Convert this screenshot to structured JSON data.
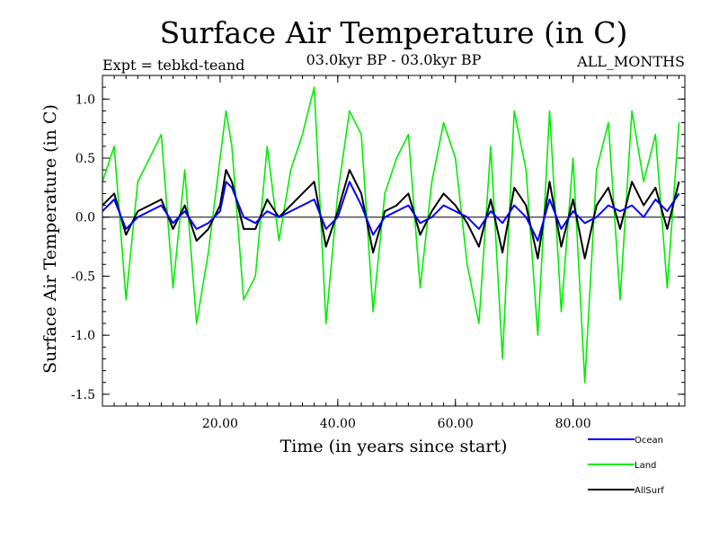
{
  "chart_data": {
    "type": "line",
    "title": "Surface Air Temperature (in C)",
    "subtitle_left": "Expt = tebkd-teand",
    "subtitle_center": "03.0kyr BP - 03.0kyr BP",
    "subtitle_right": "ALL_MONTHS",
    "xlabel": "Time (in years since start)",
    "ylabel": "Surface Air Temperature (in C)",
    "xlim": [
      0,
      99
    ],
    "ylim": [
      -1.6,
      1.2
    ],
    "xticks": [
      20,
      40,
      60,
      80
    ],
    "xtick_labels": [
      "20.00",
      "40.00",
      "60.00",
      "80.00"
    ],
    "yticks": [
      1.0,
      0.5,
      0.0,
      -0.5,
      -1.0,
      -1.5
    ],
    "ytick_labels": [
      "1.0",
      "0.5",
      "0.0",
      "-0.5",
      "-1.0",
      "-1.5"
    ],
    "zero_line": true,
    "legend_position": "bottom-right, below plot",
    "series": [
      {
        "name": "Ocean",
        "color": "#0000ff",
        "x": [
          0,
          2,
          4,
          6,
          8,
          10,
          12,
          14,
          16,
          18,
          20,
          21,
          22,
          24,
          26,
          28,
          30,
          32,
          34,
          36,
          38,
          40,
          42,
          44,
          46,
          48,
          50,
          52,
          54,
          56,
          58,
          60,
          62,
          64,
          66,
          68,
          70,
          72,
          74,
          76,
          78,
          80,
          82,
          84,
          86,
          88,
          90,
          92,
          94,
          96,
          98
        ],
        "values": [
          0.05,
          0.15,
          -0.1,
          0.0,
          0.05,
          0.1,
          -0.05,
          0.05,
          -0.1,
          -0.05,
          0.05,
          0.3,
          0.25,
          0.0,
          -0.05,
          0.05,
          0.0,
          0.05,
          0.1,
          0.15,
          -0.1,
          0.0,
          0.3,
          0.1,
          -0.15,
          0.0,
          0.05,
          0.1,
          -0.05,
          0.0,
          0.1,
          0.05,
          0.0,
          -0.1,
          0.05,
          -0.05,
          0.1,
          0.0,
          -0.2,
          0.15,
          -0.1,
          0.05,
          -0.05,
          0.0,
          0.1,
          0.05,
          0.1,
          0.0,
          0.15,
          0.05,
          0.2
        ]
      },
      {
        "name": "Land",
        "color": "#00ee00",
        "x": [
          0,
          2,
          4,
          6,
          8,
          10,
          12,
          14,
          16,
          18,
          20,
          21,
          22,
          24,
          26,
          28,
          30,
          32,
          34,
          36,
          38,
          40,
          42,
          44,
          46,
          48,
          50,
          52,
          54,
          56,
          58,
          60,
          62,
          64,
          66,
          68,
          70,
          72,
          74,
          76,
          78,
          80,
          82,
          84,
          86,
          88,
          90,
          92,
          94,
          96,
          98
        ],
        "values": [
          0.3,
          0.6,
          -0.7,
          0.3,
          0.5,
          0.7,
          -0.6,
          0.4,
          -0.9,
          -0.3,
          0.5,
          0.9,
          0.6,
          -0.7,
          -0.5,
          0.6,
          -0.2,
          0.4,
          0.7,
          1.1,
          -0.9,
          0.2,
          0.9,
          0.7,
          -0.8,
          0.2,
          0.5,
          0.7,
          -0.6,
          0.3,
          0.8,
          0.5,
          -0.4,
          -0.9,
          0.6,
          -1.2,
          0.9,
          0.4,
          -1.0,
          0.9,
          -0.8,
          0.5,
          -1.4,
          0.4,
          0.8,
          -0.7,
          0.9,
          0.3,
          0.7,
          -0.6,
          0.8
        ]
      },
      {
        "name": "AllSurf",
        "color": "#000000",
        "x": [
          0,
          2,
          4,
          6,
          8,
          10,
          12,
          14,
          16,
          18,
          20,
          21,
          22,
          24,
          26,
          28,
          30,
          32,
          34,
          36,
          38,
          40,
          42,
          44,
          46,
          48,
          50,
          52,
          54,
          56,
          58,
          60,
          62,
          64,
          66,
          68,
          70,
          72,
          74,
          76,
          78,
          80,
          82,
          84,
          86,
          88,
          90,
          92,
          94,
          96,
          98
        ],
        "values": [
          0.1,
          0.2,
          -0.15,
          0.05,
          0.1,
          0.15,
          -0.1,
          0.1,
          -0.2,
          -0.1,
          0.1,
          0.4,
          0.3,
          -0.1,
          -0.1,
          0.15,
          0.0,
          0.1,
          0.2,
          0.3,
          -0.25,
          0.05,
          0.4,
          0.2,
          -0.3,
          0.05,
          0.1,
          0.2,
          -0.15,
          0.05,
          0.2,
          0.1,
          -0.05,
          -0.25,
          0.15,
          -0.3,
          0.25,
          0.1,
          -0.35,
          0.3,
          -0.25,
          0.15,
          -0.35,
          0.1,
          0.25,
          -0.1,
          0.3,
          0.1,
          0.25,
          -0.1,
          0.3
        ]
      }
    ]
  }
}
